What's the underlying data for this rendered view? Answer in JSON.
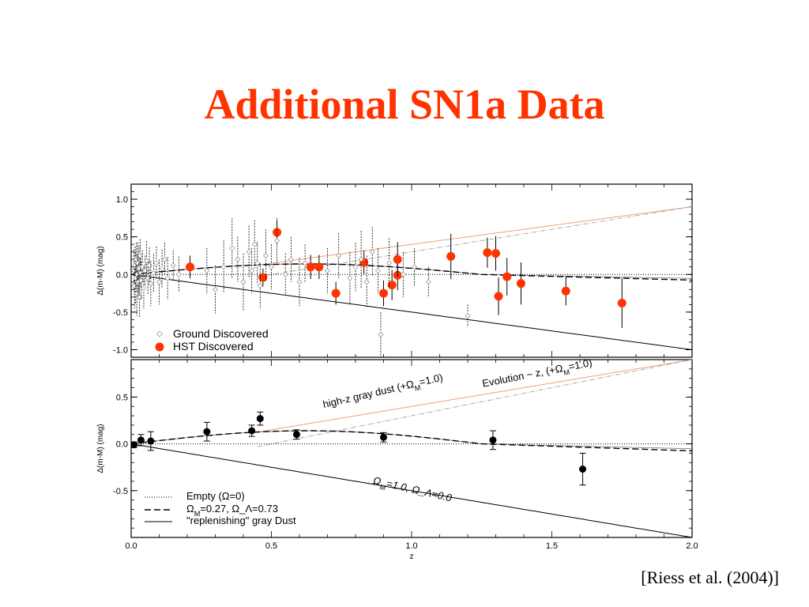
{
  "slide": {
    "title": "Additional SN1a Data",
    "citation": "[Riess et al. (2004)]"
  },
  "colors": {
    "title": "#ff3300",
    "hst_points": "#ff3300",
    "ground_points": "#9a9a9a",
    "evolution_curve": "#f2a080",
    "dust_curve": "#aaaaaa",
    "model_curves": "#000000"
  },
  "chart_data": [
    {
      "type": "scatter",
      "panel": "top",
      "xlim": [
        0,
        2.0
      ],
      "ylim": [
        -1.1,
        1.2
      ],
      "ylabel": "Δ(m-M) (mag)",
      "yticks": [
        "1.0",
        "0.5",
        "0.0",
        "-0.5",
        "-1.0"
      ],
      "ytick_values": [
        1.0,
        0.5,
        0.0,
        -0.5,
        -1.0
      ],
      "legend": {
        "placement": "bottom-left",
        "entries": [
          {
            "label": "Ground Discovered",
            "marker": "open-diamond",
            "color": "#9a9a9a"
          },
          {
            "label": "HST Discovered",
            "marker": "filled-circle",
            "color": "#ff3300"
          }
        ]
      },
      "series": [
        {
          "name": "HST Discovered",
          "points": [
            {
              "x": 0.21,
              "y": 0.1,
              "err": 0.15
            },
            {
              "x": 0.47,
              "y": -0.04,
              "err": 0.12
            },
            {
              "x": 0.52,
              "y": 0.56,
              "err": 0.16
            },
            {
              "x": 0.64,
              "y": 0.1,
              "err": 0.16
            },
            {
              "x": 0.67,
              "y": 0.1,
              "err": 0.16
            },
            {
              "x": 0.73,
              "y": -0.25,
              "err": 0.15
            },
            {
              "x": 0.83,
              "y": 0.16,
              "err": 0.16
            },
            {
              "x": 0.9,
              "y": -0.25,
              "err": 0.17
            },
            {
              "x": 0.93,
              "y": -0.14,
              "err": 0.2
            },
            {
              "x": 0.95,
              "y": -0.01,
              "err": 0.2
            },
            {
              "x": 0.95,
              "y": 0.2,
              "err": 0.23
            },
            {
              "x": 1.14,
              "y": 0.24,
              "err": 0.3
            },
            {
              "x": 1.27,
              "y": 0.29,
              "err": 0.2
            },
            {
              "x": 1.3,
              "y": 0.28,
              "err": 0.23
            },
            {
              "x": 1.31,
              "y": -0.29,
              "err": 0.25
            },
            {
              "x": 1.34,
              "y": -0.03,
              "err": 0.25
            },
            {
              "x": 1.39,
              "y": -0.12,
              "err": 0.28
            },
            {
              "x": 1.55,
              "y": -0.22,
              "err": 0.19
            },
            {
              "x": 1.75,
              "y": -0.38,
              "err": 0.33
            }
          ]
        },
        {
          "name": "Ground Discovered",
          "points": [
            {
              "x": 0.01,
              "y": 0.05,
              "err": 0.28
            },
            {
              "x": 0.012,
              "y": -0.15,
              "err": 0.3
            },
            {
              "x": 0.014,
              "y": 0.12,
              "err": 0.25
            },
            {
              "x": 0.016,
              "y": -0.05,
              "err": 0.35
            },
            {
              "x": 0.018,
              "y": 0.2,
              "err": 0.22
            },
            {
              "x": 0.02,
              "y": -0.25,
              "err": 0.3
            },
            {
              "x": 0.022,
              "y": 0.0,
              "err": 0.26
            },
            {
              "x": 0.024,
              "y": 0.15,
              "err": 0.28
            },
            {
              "x": 0.026,
              "y": -0.1,
              "err": 0.24
            },
            {
              "x": 0.028,
              "y": 0.08,
              "err": 0.3
            },
            {
              "x": 0.03,
              "y": -0.3,
              "err": 0.27
            },
            {
              "x": 0.032,
              "y": 0.25,
              "err": 0.22
            },
            {
              "x": 0.034,
              "y": 0.02,
              "err": 0.2
            },
            {
              "x": 0.036,
              "y": -0.08,
              "err": 0.25
            },
            {
              "x": 0.04,
              "y": 0.1,
              "err": 0.22
            },
            {
              "x": 0.045,
              "y": -0.18,
              "err": 0.28
            },
            {
              "x": 0.05,
              "y": 0.05,
              "err": 0.2
            },
            {
              "x": 0.055,
              "y": 0.18,
              "err": 0.26
            },
            {
              "x": 0.06,
              "y": -0.05,
              "err": 0.22
            },
            {
              "x": 0.065,
              "y": 0.12,
              "err": 0.24
            },
            {
              "x": 0.07,
              "y": -0.12,
              "err": 0.3
            },
            {
              "x": 0.08,
              "y": 0.02,
              "err": 0.25
            },
            {
              "x": 0.09,
              "y": 0.15,
              "err": 0.22
            },
            {
              "x": 0.1,
              "y": -0.1,
              "err": 0.3
            },
            {
              "x": 0.11,
              "y": 0.08,
              "err": 0.25
            },
            {
              "x": 0.12,
              "y": 0.2,
              "err": 0.22
            },
            {
              "x": 0.13,
              "y": -0.05,
              "err": 0.28
            },
            {
              "x": 0.15,
              "y": 0.12,
              "err": 0.2
            },
            {
              "x": 0.17,
              "y": 0.0,
              "err": 0.24
            },
            {
              "x": 0.27,
              "y": 0.05,
              "err": 0.3
            },
            {
              "x": 0.3,
              "y": -0.2,
              "err": 0.32
            },
            {
              "x": 0.33,
              "y": 0.1,
              "err": 0.35
            },
            {
              "x": 0.36,
              "y": 0.35,
              "err": 0.4
            },
            {
              "x": 0.38,
              "y": 0.2,
              "err": 0.3
            },
            {
              "x": 0.4,
              "y": -0.1,
              "err": 0.38
            },
            {
              "x": 0.42,
              "y": 0.3,
              "err": 0.35
            },
            {
              "x": 0.43,
              "y": 0.05,
              "err": 0.3
            },
            {
              "x": 0.44,
              "y": 0.4,
              "err": 0.32
            },
            {
              "x": 0.45,
              "y": 0.15,
              "err": 0.28
            },
            {
              "x": 0.46,
              "y": -0.15,
              "err": 0.3
            },
            {
              "x": 0.48,
              "y": 0.25,
              "err": 0.35
            },
            {
              "x": 0.5,
              "y": 0.1,
              "err": 0.3
            },
            {
              "x": 0.52,
              "y": 0.45,
              "err": 0.3
            },
            {
              "x": 0.55,
              "y": 0.0,
              "err": 0.28
            },
            {
              "x": 0.57,
              "y": 0.2,
              "err": 0.3
            },
            {
              "x": 0.6,
              "y": -0.1,
              "err": 0.32
            },
            {
              "x": 0.62,
              "y": 0.15,
              "err": 0.25
            },
            {
              "x": 0.7,
              "y": 0.05,
              "err": 0.3
            },
            {
              "x": 0.74,
              "y": 0.25,
              "err": 0.3
            },
            {
              "x": 0.78,
              "y": -0.05,
              "err": 0.35
            },
            {
              "x": 0.8,
              "y": 0.1,
              "err": 0.32
            },
            {
              "x": 0.82,
              "y": 0.2,
              "err": 0.38
            },
            {
              "x": 0.84,
              "y": -0.1,
              "err": 0.35
            },
            {
              "x": 0.86,
              "y": 0.3,
              "err": 0.33
            },
            {
              "x": 0.88,
              "y": 0.05,
              "err": 0.3
            },
            {
              "x": 0.89,
              "y": -0.8,
              "err": 0.3
            },
            {
              "x": 0.92,
              "y": 0.15,
              "err": 0.33
            },
            {
              "x": 0.97,
              "y": 0.0,
              "err": 0.3
            },
            {
              "x": 1.01,
              "y": 0.1,
              "err": 0.25
            },
            {
              "x": 1.06,
              "y": -0.1,
              "err": 0.2
            },
            {
              "x": 1.2,
              "y": -0.55,
              "err": 0.15
            }
          ]
        }
      ]
    },
    {
      "type": "scatter",
      "panel": "bottom",
      "xlim": [
        0,
        2.0
      ],
      "ylim": [
        -1.0,
        0.9
      ],
      "xlabel": "z",
      "ylabel": "Δ(m-M) (mag)",
      "xticks": [
        "0.0",
        "0.5",
        "1.0",
        "1.5",
        "2.0"
      ],
      "xtick_values": [
        0.0,
        0.5,
        1.0,
        1.5,
        2.0
      ],
      "yticks": [
        "0.5",
        "0.0",
        "-0.5"
      ],
      "ytick_values": [
        0.5,
        0.0,
        -0.5
      ],
      "legend": {
        "placement": "bottom-left",
        "entries": [
          {
            "label": "Empty (Ω=0)",
            "style": "dotted"
          },
          {
            "label": "Ω_M=0.27, Ω_Λ=0.73",
            "style": "dashed"
          },
          {
            "label": "\"replenishing\" gray Dust",
            "style": "solid"
          }
        ]
      },
      "annotations": [
        {
          "text": "high-z gray dust (+Ω_M=1.0)",
          "x": 0.9,
          "y": 0.53
        },
        {
          "text": "Evolution ~ z, (+Ω_M=1.0)",
          "x": 1.45,
          "y": 0.72
        },
        {
          "text": "Ω_M=1.0, Ω_Λ=0.0",
          "x": 1.0,
          "y": -0.52
        }
      ],
      "series": [
        {
          "name": "binned",
          "points": [
            {
              "x": 0.01,
              "y": -0.01,
              "err": 0.03
            },
            {
              "x": 0.035,
              "y": 0.04,
              "err": 0.06
            },
            {
              "x": 0.07,
              "y": 0.03,
              "err": 0.1
            },
            {
              "x": 0.27,
              "y": 0.13,
              "err": 0.1
            },
            {
              "x": 0.43,
              "y": 0.14,
              "err": 0.06
            },
            {
              "x": 0.46,
              "y": 0.27,
              "err": 0.07
            },
            {
              "x": 0.59,
              "y": 0.1,
              "err": 0.05
            },
            {
              "x": 0.9,
              "y": 0.07,
              "err": 0.05
            },
            {
              "x": 1.29,
              "y": 0.04,
              "err": 0.1
            },
            {
              "x": 1.61,
              "y": -0.27,
              "err": 0.17
            }
          ]
        }
      ]
    }
  ]
}
